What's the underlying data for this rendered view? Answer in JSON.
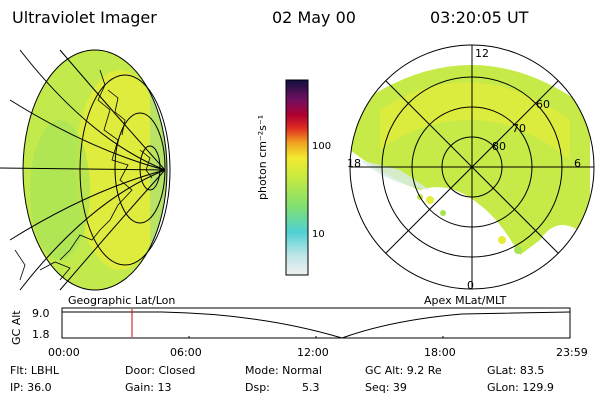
{
  "header": {
    "instrument": "Ultraviolet Imager",
    "date": "02 May 00",
    "time": "03:20:05 UT"
  },
  "colorbar": {
    "unit_label": "photon cm⁻²s⁻¹",
    "tick_100": "100",
    "tick_10": "10"
  },
  "polar": {
    "mlat_60": "60",
    "mlat_70": "70",
    "mlat_80": "80",
    "mlt_12": "12",
    "mlt_18": "18",
    "mlt_6": "6",
    "mlt_0": "0"
  },
  "labels": {
    "geo": "Geographic Lat/Lon",
    "apex": "Apex MLat/MLT"
  },
  "altplot": {
    "ylabel": "GC Alt",
    "y_high": "9.0",
    "y_low": "1.8",
    "x_ticks": [
      "00:00",
      "06:00",
      "12:00",
      "18:00",
      "23:59"
    ]
  },
  "info": {
    "flt": "Flt: LBHL",
    "ip": "IP: 36.0",
    "door": "Door: Closed",
    "gain": "Gain: 13",
    "mode": "Mode: Normal",
    "dsp_label": "Dsp:",
    "dsp_value": "5.3",
    "gc_alt": "GC Alt: 9.2 Re",
    "seq": "Seq: 39",
    "glat": "GLat: 83.5",
    "glon": "GLon: 129.9"
  },
  "colors": {
    "image_green": "#b9e84a",
    "image_yellow": "#e4ec3c",
    "marker_red": "#d40000"
  }
}
